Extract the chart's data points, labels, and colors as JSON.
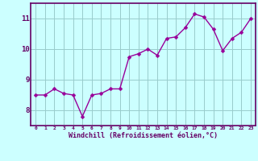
{
  "x": [
    0,
    1,
    2,
    3,
    4,
    5,
    6,
    7,
    8,
    9,
    10,
    11,
    12,
    13,
    14,
    15,
    16,
    17,
    18,
    19,
    20,
    21,
    22,
    23
  ],
  "y": [
    8.5,
    8.5,
    8.7,
    8.55,
    8.5,
    7.8,
    8.5,
    8.55,
    8.7,
    8.7,
    9.75,
    9.85,
    10.0,
    9.8,
    10.35,
    10.4,
    10.7,
    11.15,
    11.05,
    10.65,
    9.95,
    10.35,
    10.55,
    11.0
  ],
  "line_color": "#990099",
  "marker_color": "#990099",
  "bg_color": "#ccffff",
  "grid_color": "#99cccc",
  "axis_color": "#660066",
  "xlabel": "Windchill (Refroidissement éolien,°C)",
  "ylim": [
    7.5,
    11.5
  ],
  "xlim": [
    -0.5,
    23.5
  ],
  "yticks": [
    8,
    9,
    10,
    11
  ],
  "xticks": [
    0,
    1,
    2,
    3,
    4,
    5,
    6,
    7,
    8,
    9,
    10,
    11,
    12,
    13,
    14,
    15,
    16,
    17,
    18,
    19,
    20,
    21,
    22,
    23
  ],
  "xtick_labels": [
    "0",
    "1",
    "2",
    "3",
    "4",
    "5",
    "6",
    "7",
    "8",
    "9",
    "10",
    "11",
    "12",
    "13",
    "14",
    "15",
    "16",
    "17",
    "18",
    "19",
    "20",
    "21",
    "22",
    "23"
  ],
  "font_color": "#660066",
  "linewidth": 1.0,
  "markersize": 2.5
}
